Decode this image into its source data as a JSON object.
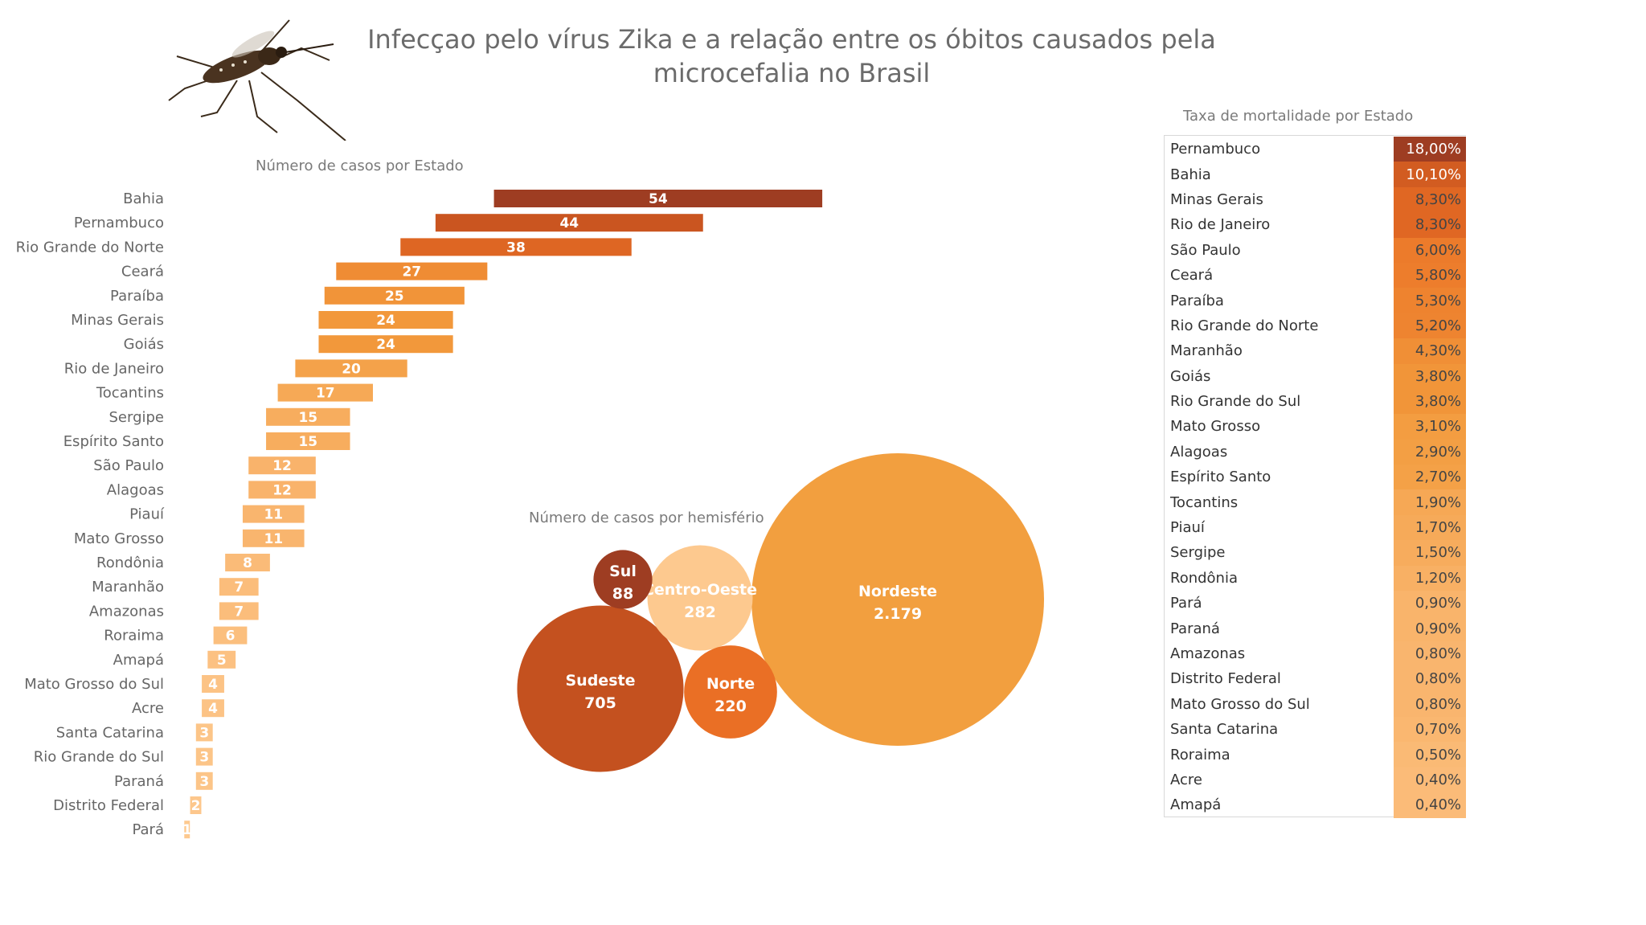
{
  "title": "Infecçao pelo vírus Zika e a relação entre os óbitos causados pela microcefalia no Brasil",
  "colors": {
    "dark": "#9e3d22",
    "mid_dark": "#c4511f",
    "orange": "#ea6f25",
    "mid": "#f29b3c",
    "light": "#f9b36a",
    "pale": "#fdc98f"
  },
  "chart_data": [
    {
      "type": "bar",
      "title": "Número de casos por Estado",
      "categories": [
        "Bahia",
        "Pernambuco",
        "Rio Grande do Norte",
        "Ceará",
        "Paraíba",
        "Minas Gerais",
        "Goiás",
        "Rio de Janeiro",
        "Tocantins",
        "Sergipe",
        "Espírito Santo",
        "São Paulo",
        "Alagoas",
        "Piauí",
        "Mato Grosso",
        "Rondônia",
        "Maranhão",
        "Amazonas",
        "Roraima",
        "Amapá",
        "Mato Grosso do Sul",
        "Acre",
        "Santa Catarina",
        "Rio Grande do Sul",
        "Paraná",
        "Distrito Federal",
        "Pará"
      ],
      "values": [
        54,
        44,
        38,
        27,
        25,
        24,
        24,
        20,
        17,
        15,
        15,
        12,
        12,
        11,
        11,
        8,
        7,
        7,
        6,
        5,
        4,
        4,
        3,
        3,
        3,
        2,
        1
      ],
      "labels": [
        "54",
        "44",
        "38",
        "27",
        "25",
        "24",
        "24",
        "20",
        "17",
        "15",
        "15",
        "12",
        "12",
        "11",
        "11",
        "8",
        "7",
        "7",
        "6",
        "5",
        "4",
        "4",
        "3",
        "3",
        "3",
        "2",
        "1"
      ]
    },
    {
      "type": "bubble",
      "title": "Número de casos por hemisfério",
      "series": [
        {
          "name": "Nordeste",
          "value": 2179,
          "label": "2.179"
        },
        {
          "name": "Sudeste",
          "value": 705,
          "label": "705"
        },
        {
          "name": "Centro-Oeste",
          "value": 282,
          "label": "282"
        },
        {
          "name": "Norte",
          "value": 220,
          "label": "220"
        },
        {
          "name": "Sul",
          "value": 88,
          "label": "88"
        }
      ]
    },
    {
      "type": "table",
      "title": "Taxa de mortalidade por Estado",
      "rows": [
        {
          "state": "Pernambuco",
          "rate": 18.0,
          "label": "18,00%"
        },
        {
          "state": "Bahia",
          "rate": 10.1,
          "label": "10,10%"
        },
        {
          "state": "Minas Gerais",
          "rate": 8.3,
          "label": "8,30%"
        },
        {
          "state": "Rio de Janeiro",
          "rate": 8.3,
          "label": "8,30%"
        },
        {
          "state": "São Paulo",
          "rate": 6.0,
          "label": "6,00%"
        },
        {
          "state": "Ceará",
          "rate": 5.8,
          "label": "5,80%"
        },
        {
          "state": "Paraíba",
          "rate": 5.3,
          "label": "5,30%"
        },
        {
          "state": "Rio Grande do Norte",
          "rate": 5.2,
          "label": "5,20%"
        },
        {
          "state": "Maranhão",
          "rate": 4.3,
          "label": "4,30%"
        },
        {
          "state": "Goiás",
          "rate": 3.8,
          "label": "3,80%"
        },
        {
          "state": "Rio Grande do Sul",
          "rate": 3.8,
          "label": "3,80%"
        },
        {
          "state": "Mato Grosso",
          "rate": 3.1,
          "label": "3,10%"
        },
        {
          "state": "Alagoas",
          "rate": 2.9,
          "label": "2,90%"
        },
        {
          "state": "Espírito Santo",
          "rate": 2.7,
          "label": "2,70%"
        },
        {
          "state": "Tocantins",
          "rate": 1.9,
          "label": "1,90%"
        },
        {
          "state": "Piauí",
          "rate": 1.7,
          "label": "1,70%"
        },
        {
          "state": "Sergipe",
          "rate": 1.5,
          "label": "1,50%"
        },
        {
          "state": "Rondônia",
          "rate": 1.2,
          "label": "1,20%"
        },
        {
          "state": "Pará",
          "rate": 0.9,
          "label": "0,90%"
        },
        {
          "state": "Paraná",
          "rate": 0.9,
          "label": "0,90%"
        },
        {
          "state": "Amazonas",
          "rate": 0.8,
          "label": "0,80%"
        },
        {
          "state": "Distrito Federal",
          "rate": 0.8,
          "label": "0,80%"
        },
        {
          "state": "Mato Grosso do Sul",
          "rate": 0.8,
          "label": "0,80%"
        },
        {
          "state": "Santa Catarina",
          "rate": 0.7,
          "label": "0,70%"
        },
        {
          "state": "Roraima",
          "rate": 0.5,
          "label": "0,50%"
        },
        {
          "state": "Acre",
          "rate": 0.4,
          "label": "0,40%"
        },
        {
          "state": "Amapá",
          "rate": 0.4,
          "label": "0,40%"
        }
      ]
    }
  ]
}
